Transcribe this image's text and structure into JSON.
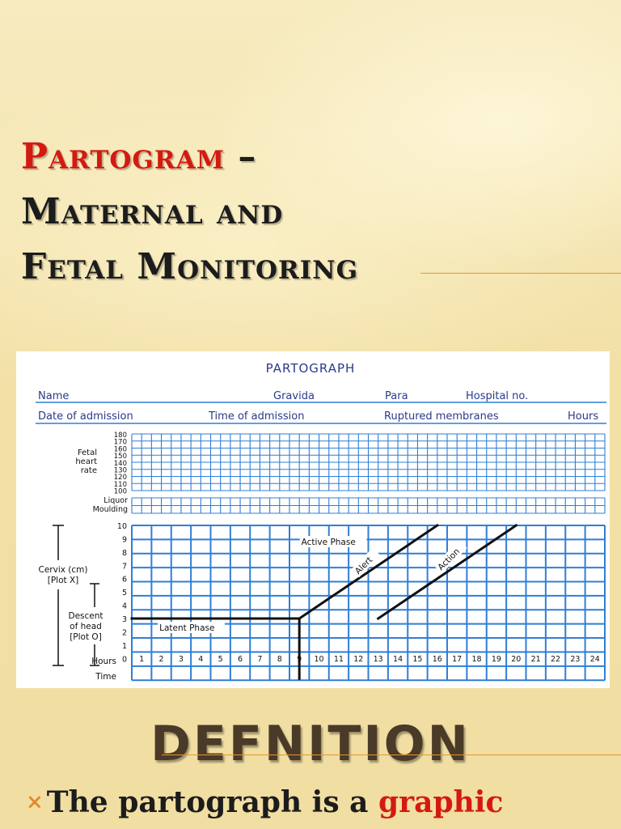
{
  "slide": {
    "title_line1_red": "Partogram",
    "title_line1_rest": " –",
    "title_line2": "Maternal and",
    "title_line3": "Fetal Monitoring",
    "heading": "DEFNITION",
    "bullet_mark": "×",
    "bullet_text": "The partograph is a ",
    "bullet_red": "graphic"
  },
  "colors": {
    "red": "#d41a10",
    "grid_blue": "#2f7fd6",
    "label_navy": "#2a3a8a",
    "accent_orange": "#e6962f"
  },
  "partograph": {
    "title": "PARTOGRAPH",
    "row1": [
      "Name",
      "Gravida",
      "Para",
      "Hospital no."
    ],
    "row2": [
      "Date of admission",
      "Time of admission",
      "Ruptured membranes",
      "Hours"
    ],
    "fhr_label": [
      "Fetal",
      "heart",
      "rate"
    ],
    "fhr_ticks": [
      "180",
      "170",
      "160",
      "150",
      "140",
      "130",
      "120",
      "110",
      "100"
    ],
    "liquor_label": [
      "Liquor",
      "Moulding"
    ],
    "cervix_label": [
      "Cervix (cm)",
      "[Plot X]"
    ],
    "descent_label": [
      "Descent",
      "of head",
      "[Plot O]"
    ],
    "hours_label": "Hours",
    "time_label": "Time",
    "cervix_ticks": [
      "10",
      "9",
      "8",
      "7",
      "6",
      "5",
      "4",
      "3",
      "2",
      "1",
      "0"
    ],
    "hour_numbers": [
      "1",
      "2",
      "3",
      "4",
      "5",
      "6",
      "7",
      "8",
      "9",
      "10",
      "11",
      "12",
      "13",
      "14",
      "15",
      "16",
      "17",
      "18",
      "19",
      "20",
      "21",
      "22",
      "23",
      "24"
    ],
    "active_phase_label": "Active Phase",
    "latent_phase_label": "Latent Phase",
    "alert_label": "Alert",
    "action_label": "Action"
  }
}
